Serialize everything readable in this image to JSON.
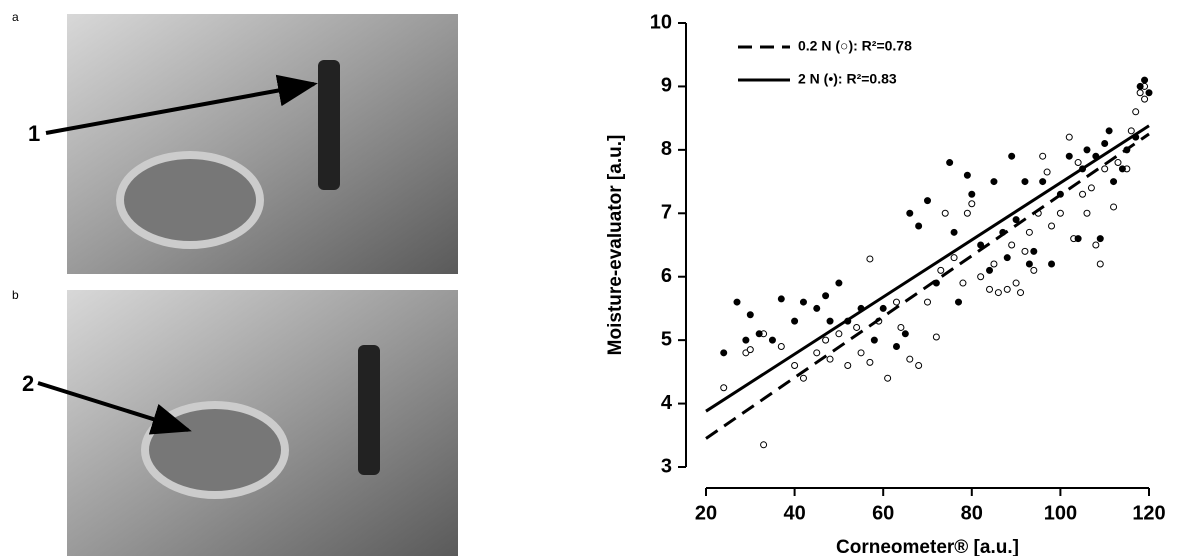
{
  "photos": [
    {
      "label": "a",
      "marker": "1"
    },
    {
      "label": "b",
      "marker": "2"
    }
  ],
  "chart_data": {
    "type": "scatter",
    "xlabel": "Corneometer® [a.u.]",
    "ylabel": "Moisture-evaluator [a.u.]",
    "xlim": [
      20,
      120
    ],
    "ylim": [
      3,
      10
    ],
    "xticks": [
      20,
      40,
      60,
      80,
      100,
      120
    ],
    "yticks": [
      3,
      4,
      5,
      6,
      7,
      8,
      9,
      10
    ],
    "series": [
      {
        "name": "0.2 N (○): R²=0.78",
        "marker": "open",
        "color": "#000000",
        "dash": true,
        "x": [
          24,
          29,
          30,
          33,
          33,
          37,
          40,
          42,
          45,
          47,
          48,
          50,
          52,
          54,
          55,
          57,
          57,
          59,
          61,
          63,
          64,
          66,
          68,
          70,
          72,
          73,
          74,
          76,
          78,
          79,
          80,
          82,
          84,
          85,
          86,
          88,
          89,
          90,
          91,
          92,
          93,
          94,
          95,
          96,
          97,
          98,
          100,
          102,
          103,
          104,
          105,
          106,
          107,
          108,
          109,
          110,
          112,
          113,
          115,
          116,
          117,
          118,
          119,
          119
        ],
        "y": [
          4.25,
          4.8,
          4.85,
          3.35,
          5.1,
          4.9,
          4.6,
          4.4,
          4.8,
          5.0,
          4.7,
          5.1,
          4.6,
          5.2,
          4.8,
          6.28,
          4.65,
          5.3,
          4.4,
          5.6,
          5.2,
          4.7,
          4.6,
          5.6,
          5.05,
          6.1,
          7.0,
          6.3,
          5.9,
          7.0,
          7.15,
          6.0,
          5.8,
          6.2,
          5.75,
          5.8,
          6.5,
          5.9,
          5.75,
          6.4,
          6.7,
          6.1,
          7.0,
          7.9,
          7.65,
          6.8,
          7.0,
          8.2,
          6.6,
          7.8,
          7.3,
          7.0,
          7.4,
          6.5,
          6.2,
          7.7,
          7.1,
          7.8,
          7.7,
          8.3,
          8.6,
          8.9,
          9.0,
          8.8
        ],
        "fit_x": [
          20,
          120
        ],
        "fit_y": [
          3.45,
          8.25
        ]
      },
      {
        "name": "2 N (•): R²=0.83",
        "marker": "filled",
        "color": "#000000",
        "dash": false,
        "x": [
          24,
          27,
          29,
          30,
          32,
          35,
          37,
          40,
          42,
          45,
          47,
          48,
          50,
          52,
          55,
          58,
          60,
          63,
          65,
          66,
          68,
          70,
          72,
          75,
          76,
          77,
          79,
          80,
          82,
          84,
          85,
          87,
          88,
          89,
          90,
          92,
          93,
          94,
          96,
          98,
          100,
          102,
          104,
          105,
          106,
          108,
          109,
          110,
          111,
          112,
          114,
          115,
          117,
          118,
          119,
          120
        ],
        "y": [
          4.8,
          5.6,
          5.0,
          5.4,
          5.1,
          5.0,
          5.65,
          5.3,
          5.6,
          5.5,
          5.7,
          5.3,
          5.9,
          5.3,
          5.5,
          5.0,
          5.5,
          4.9,
          5.1,
          7.0,
          6.8,
          7.2,
          5.9,
          7.8,
          6.7,
          5.6,
          7.6,
          7.3,
          6.5,
          6.1,
          7.5,
          6.7,
          6.3,
          7.9,
          6.9,
          7.5,
          6.2,
          6.4,
          7.5,
          6.2,
          7.3,
          7.9,
          6.6,
          7.7,
          8.0,
          7.9,
          6.6,
          8.1,
          8.3,
          7.5,
          7.7,
          8.0,
          8.2,
          9.0,
          9.1,
          8.9
        ],
        "fit_x": [
          20,
          120
        ],
        "fit_y": [
          3.88,
          8.38
        ]
      }
    ]
  }
}
